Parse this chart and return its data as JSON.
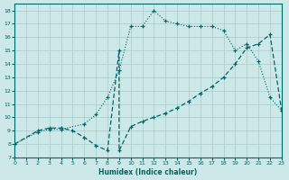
{
  "xlabel": "Humidex (Indice chaleur)",
  "xlim": [
    0,
    23
  ],
  "ylim": [
    7,
    18.5
  ],
  "yticks": [
    7,
    8,
    9,
    10,
    11,
    12,
    13,
    14,
    15,
    16,
    17,
    18
  ],
  "xticks": [
    0,
    1,
    2,
    3,
    4,
    5,
    6,
    7,
    8,
    9,
    10,
    11,
    12,
    13,
    14,
    15,
    16,
    17,
    18,
    19,
    20,
    21,
    22,
    23
  ],
  "bg_color": "#cde8e8",
  "grid_color": "#aacccc",
  "line_color": "#006666",
  "curve_dotted_x": [
    0,
    2,
    3,
    4,
    6,
    7,
    8,
    9,
    10,
    11,
    12,
    13,
    14,
    15,
    16,
    17,
    18,
    19,
    20,
    21,
    22,
    23
  ],
  "curve_dotted_y": [
    8.0,
    8.9,
    9.1,
    9.1,
    9.5,
    10.2,
    11.5,
    13.5,
    16.8,
    16.8,
    18.0,
    17.2,
    17.0,
    16.8,
    16.8,
    16.8,
    16.5,
    15.0,
    15.5,
    14.2,
    11.5,
    10.5
  ],
  "curve_solid_x": [
    0,
    2,
    3,
    4,
    5,
    6,
    7,
    8,
    9,
    9,
    10,
    11,
    12,
    13,
    14,
    15,
    16,
    17,
    18,
    19,
    20,
    21,
    22,
    23
  ],
  "curve_solid_y": [
    8.0,
    9.0,
    9.2,
    9.2,
    9.0,
    8.5,
    7.9,
    7.5,
    15.0,
    7.5,
    9.3,
    9.7,
    10.0,
    10.3,
    10.7,
    11.2,
    11.8,
    12.3,
    13.0,
    14.0,
    15.2,
    15.5,
    16.2,
    10.5
  ]
}
